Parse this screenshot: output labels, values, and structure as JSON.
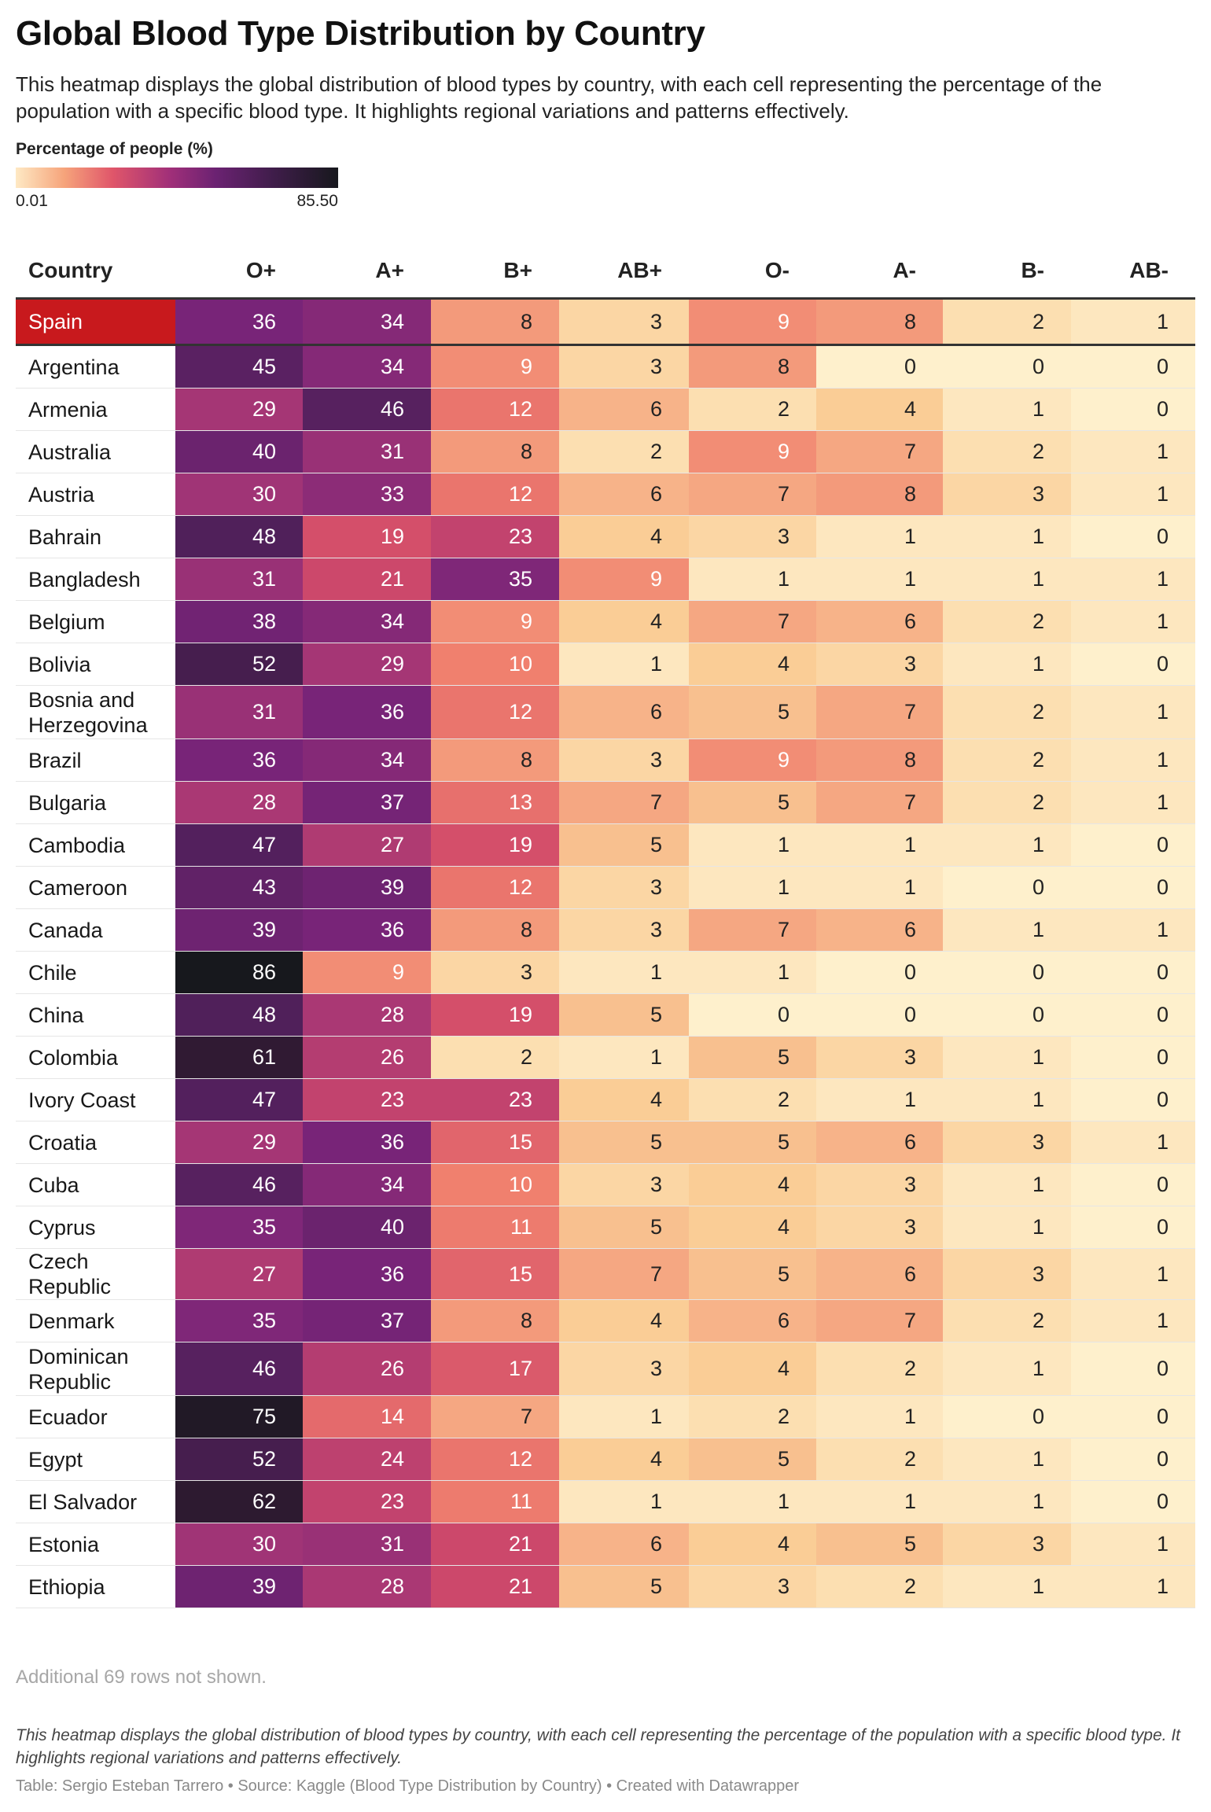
{
  "title": "Global Blood Type Distribution by Country",
  "description": "This heatmap displays the global distribution of blood types by country, with each cell representing the percentage of the population with a specific blood type. It highlights regional variations and patterns effectively.",
  "legend": {
    "title": "Percentage of people (%)",
    "min": "0.01",
    "max": "85.50",
    "min_value": 0.01,
    "max_value": 85.5
  },
  "note": "Additional 69 rows not shown.",
  "footnote": "This heatmap displays the global distribution of blood types by country, with each cell representing the percentage of the population with a specific blood type. It highlights regional variations and patterns effectively.",
  "credit": "Table: Sergio Esteban Tarrero • Source: Kaggle (Blood Type Distribution by Country) • Created with Datawrapper",
  "colors": {
    "highlight": "#c8191d"
  },
  "chart_data": {
    "type": "heatmap",
    "row_header": "Country",
    "columns": [
      "O+",
      "A+",
      "B+",
      "AB+",
      "O-",
      "A-",
      "B-",
      "AB-"
    ],
    "highlight_row": "Spain",
    "rows": [
      {
        "country": "Spain",
        "values": [
          36,
          34,
          8,
          3,
          9,
          8,
          2,
          1
        ]
      },
      {
        "country": "Argentina",
        "values": [
          45,
          34,
          9,
          3,
          8,
          0,
          0,
          0
        ]
      },
      {
        "country": "Armenia",
        "values": [
          29,
          46,
          12,
          6,
          2,
          4,
          1,
          0
        ]
      },
      {
        "country": "Australia",
        "values": [
          40,
          31,
          8,
          2,
          9,
          7,
          2,
          1
        ]
      },
      {
        "country": "Austria",
        "values": [
          30,
          33,
          12,
          6,
          7,
          8,
          3,
          1
        ]
      },
      {
        "country": "Bahrain",
        "values": [
          48,
          19,
          23,
          4,
          3,
          1,
          1,
          0
        ]
      },
      {
        "country": "Bangladesh",
        "values": [
          31,
          21,
          35,
          9,
          1,
          1,
          1,
          1
        ]
      },
      {
        "country": "Belgium",
        "values": [
          38,
          34,
          9,
          4,
          7,
          6,
          2,
          1
        ]
      },
      {
        "country": "Bolivia",
        "values": [
          52,
          29,
          10,
          1,
          4,
          3,
          1,
          0
        ]
      },
      {
        "country": "Bosnia and Herzegovina",
        "values": [
          31,
          36,
          12,
          6,
          5,
          7,
          2,
          1
        ]
      },
      {
        "country": "Brazil",
        "values": [
          36,
          34,
          8,
          3,
          9,
          8,
          2,
          1
        ]
      },
      {
        "country": "Bulgaria",
        "values": [
          28,
          37,
          13,
          7,
          5,
          7,
          2,
          1
        ]
      },
      {
        "country": "Cambodia",
        "values": [
          47,
          27,
          19,
          5,
          1,
          1,
          1,
          0
        ]
      },
      {
        "country": "Cameroon",
        "values": [
          43,
          39,
          12,
          3,
          1,
          1,
          0,
          0
        ]
      },
      {
        "country": "Canada",
        "values": [
          39,
          36,
          8,
          3,
          7,
          6,
          1,
          1
        ]
      },
      {
        "country": "Chile",
        "values": [
          86,
          9,
          3,
          1,
          1,
          0,
          0,
          0
        ]
      },
      {
        "country": "China",
        "values": [
          48,
          28,
          19,
          5,
          0,
          0,
          0,
          0
        ]
      },
      {
        "country": "Colombia",
        "values": [
          61,
          26,
          2,
          1,
          5,
          3,
          1,
          0
        ]
      },
      {
        "country": "Ivory Coast",
        "values": [
          47,
          23,
          23,
          4,
          2,
          1,
          1,
          0
        ]
      },
      {
        "country": "Croatia",
        "values": [
          29,
          36,
          15,
          5,
          5,
          6,
          3,
          1
        ]
      },
      {
        "country": "Cuba",
        "values": [
          46,
          34,
          10,
          3,
          4,
          3,
          1,
          0
        ]
      },
      {
        "country": "Cyprus",
        "values": [
          35,
          40,
          11,
          5,
          4,
          3,
          1,
          0
        ]
      },
      {
        "country": "Czech Republic",
        "values": [
          27,
          36,
          15,
          7,
          5,
          6,
          3,
          1
        ]
      },
      {
        "country": "Denmark",
        "values": [
          35,
          37,
          8,
          4,
          6,
          7,
          2,
          1
        ]
      },
      {
        "country": "Dominican Republic",
        "values": [
          46,
          26,
          17,
          3,
          4,
          2,
          1,
          0
        ]
      },
      {
        "country": "Ecuador",
        "values": [
          75,
          14,
          7,
          1,
          2,
          1,
          0,
          0
        ]
      },
      {
        "country": "Egypt",
        "values": [
          52,
          24,
          12,
          4,
          5,
          2,
          1,
          0
        ]
      },
      {
        "country": "El Salvador",
        "values": [
          62,
          23,
          11,
          1,
          1,
          1,
          1,
          0
        ]
      },
      {
        "country": "Estonia",
        "values": [
          30,
          31,
          21,
          6,
          4,
          5,
          3,
          1
        ]
      },
      {
        "country": "Ethiopia",
        "values": [
          39,
          28,
          21,
          5,
          3,
          2,
          1,
          1
        ]
      }
    ]
  }
}
